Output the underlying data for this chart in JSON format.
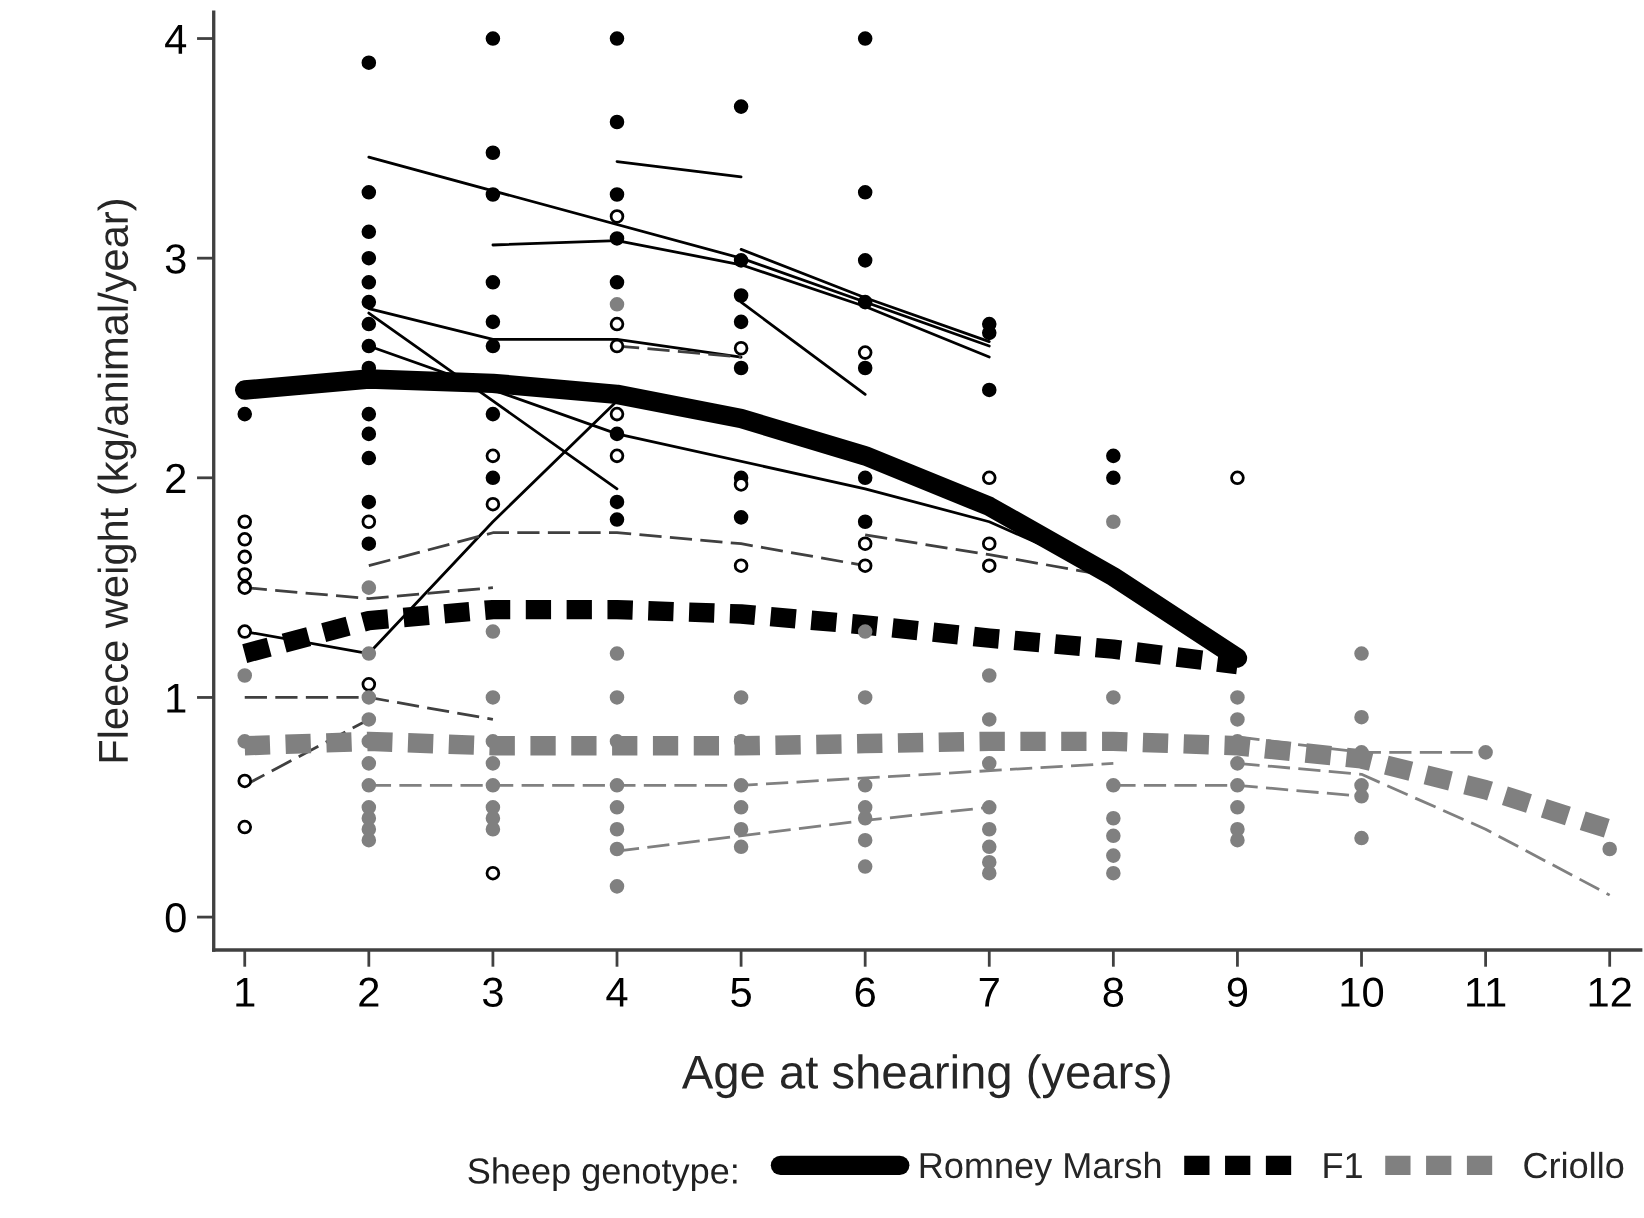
{
  "chart_data": {
    "type": "line",
    "xlabel": "Age at shearing (years)",
    "ylabel": "Fleece weight (kg/animal/year)",
    "legend_title": "Sheep genotype:",
    "xlim": [
      0.75,
      12.25
    ],
    "ylim": [
      -0.15,
      4.12
    ],
    "xticks": [
      1,
      2,
      3,
      4,
      5,
      6,
      7,
      8,
      9,
      10,
      11,
      12
    ],
    "yticks": [
      0,
      1,
      2,
      3,
      4
    ],
    "grid": false,
    "legend": "bottom",
    "series": [
      {
        "type": "scatter",
        "marker": "circle",
        "color": "#000000",
        "x": [
          1,
          2,
          2,
          2,
          2,
          2,
          2,
          2,
          2,
          2,
          2,
          2,
          2,
          2,
          2,
          3,
          3,
          3,
          3,
          3,
          3,
          3,
          3,
          4,
          4,
          4,
          4,
          4,
          4,
          4,
          4,
          5,
          5,
          5,
          5,
          5,
          5,
          5,
          6,
          6,
          6,
          6,
          6,
          6,
          6,
          7,
          7,
          7,
          8,
          8
        ],
        "values": [
          2.29,
          3.89,
          3.3,
          3.12,
          3.0,
          2.89,
          2.8,
          2.7,
          2.6,
          2.5,
          2.29,
          2.2,
          2.09,
          1.89,
          1.7,
          4.0,
          3.48,
          3.29,
          2.89,
          2.71,
          2.6,
          2.29,
          2.0,
          4.0,
          3.62,
          3.29,
          3.09,
          2.89,
          2.2,
          1.89,
          1.81,
          3.69,
          2.99,
          2.83,
          2.71,
          2.5,
          2.0,
          1.82,
          4.0,
          3.3,
          2.99,
          2.8,
          2.5,
          2.0,
          1.8,
          2.7,
          2.66,
          2.4,
          2.1,
          2.0
        ]
      },
      {
        "type": "scatter",
        "marker": "circle",
        "color": "#ffffff",
        "x": [
          1,
          1,
          1,
          1,
          1,
          1,
          1,
          1,
          2,
          2,
          3,
          3,
          3,
          4,
          4,
          4,
          4,
          4,
          5,
          5,
          5,
          6,
          6,
          6,
          7,
          7,
          7,
          9
        ],
        "values": [
          1.8,
          1.72,
          1.64,
          1.56,
          1.5,
          1.3,
          0.62,
          0.41,
          1.8,
          1.06,
          2.1,
          1.88,
          0.2,
          3.19,
          2.7,
          2.6,
          2.29,
          2.1,
          2.59,
          1.97,
          1.6,
          2.57,
          1.7,
          1.6,
          2.0,
          1.7,
          1.6,
          2.0
        ]
      },
      {
        "type": "scatter",
        "marker": "circle",
        "color": "#808080",
        "x": [
          1,
          1,
          2,
          2,
          2,
          2,
          2,
          2,
          2,
          2,
          2,
          2,
          2,
          3,
          3,
          3,
          3,
          3,
          3,
          3,
          3,
          4,
          4,
          4,
          4,
          4,
          4,
          4,
          4,
          4,
          5,
          5,
          5,
          5,
          5,
          5,
          6,
          6,
          6,
          6,
          6,
          6,
          6,
          7,
          7,
          7,
          7,
          7,
          7,
          7,
          7,
          8,
          8,
          8,
          8,
          8,
          8,
          8,
          9,
          9,
          9,
          9,
          9,
          9,
          9,
          9,
          10,
          10,
          10,
          10,
          10,
          10,
          11,
          12
        ],
        "values": [
          1.1,
          0.8,
          1.5,
          1.2,
          1.0,
          0.9,
          0.8,
          0.7,
          0.6,
          0.5,
          0.45,
          0.4,
          0.35,
          1.3,
          1.0,
          0.8,
          0.7,
          0.6,
          0.5,
          0.45,
          0.4,
          2.79,
          1.2,
          1.0,
          0.8,
          0.6,
          0.5,
          0.4,
          0.31,
          0.14,
          1.0,
          0.8,
          0.6,
          0.5,
          0.4,
          0.32,
          1.3,
          1.0,
          0.6,
          0.5,
          0.45,
          0.35,
          0.23,
          1.1,
          0.9,
          0.7,
          0.5,
          0.4,
          0.32,
          0.25,
          0.2,
          1.8,
          1.0,
          0.6,
          0.45,
          0.37,
          0.28,
          0.2,
          1.0,
          0.9,
          0.8,
          0.7,
          0.6,
          0.5,
          0.4,
          0.35,
          1.2,
          0.91,
          0.75,
          0.6,
          0.55,
          0.36,
          0.75,
          0.31
        ]
      },
      {
        "line_style": "solid",
        "color": "#000000",
        "x": [
          2,
          5,
          7
        ],
        "values": [
          3.46,
          3.0,
          2.6
        ]
      },
      {
        "line_style": "solid",
        "color": "#000000",
        "x": [
          3,
          4,
          5,
          6,
          7
        ],
        "values": [
          3.06,
          3.08,
          2.97,
          2.78,
          2.55
        ]
      },
      {
        "line_style": "solid",
        "color": "#000000",
        "x": [
          4,
          5
        ],
        "values": [
          3.44,
          3.37
        ]
      },
      {
        "line_style": "solid",
        "color": "#000000",
        "x": [
          5,
          6,
          7
        ],
        "values": [
          3.04,
          2.82,
          2.62
        ]
      },
      {
        "line_style": "solid",
        "color": "#000000",
        "x": [
          5,
          6
        ],
        "values": [
          2.8,
          2.38
        ]
      },
      {
        "line_style": "solid",
        "color": "#000000",
        "x": [
          2,
          3,
          4,
          5
        ],
        "values": [
          2.77,
          2.63,
          2.63,
          2.55
        ]
      },
      {
        "line_style": "solid",
        "color": "#000000",
        "x": [
          2,
          4,
          6,
          7,
          8
        ],
        "values": [
          2.6,
          2.2,
          1.95,
          1.8,
          1.55
        ]
      },
      {
        "line_style": "solid",
        "color": "#000000",
        "x": [
          2,
          3,
          4
        ],
        "values": [
          2.75,
          2.35,
          1.95
        ]
      },
      {
        "line_style": "solid",
        "color": "#000000",
        "x": [
          1,
          2,
          3,
          4
        ],
        "values": [
          1.3,
          1.2,
          1.8,
          2.35
        ]
      },
      {
        "line_style": "dashed",
        "color": "#404040",
        "x": [
          4,
          5
        ],
        "values": [
          2.6,
          2.55
        ]
      },
      {
        "line_style": "dashed",
        "color": "#404040",
        "x": [
          1,
          2,
          3
        ],
        "values": [
          1.5,
          1.45,
          1.5
        ]
      },
      {
        "line_style": "dashed",
        "color": "#404040",
        "x": [
          1,
          2,
          3
        ],
        "values": [
          1.0,
          1.0,
          0.9
        ]
      },
      {
        "line_style": "dashed",
        "color": "#404040",
        "x": [
          1,
          2
        ],
        "values": [
          0.6,
          0.9
        ]
      },
      {
        "line_style": "dashed",
        "color": "#404040",
        "x": [
          2,
          3,
          4,
          5,
          6
        ],
        "values": [
          1.6,
          1.75,
          1.75,
          1.7,
          1.6
        ]
      },
      {
        "line_style": "dashed",
        "color": "#404040",
        "x": [
          6,
          7,
          8
        ],
        "values": [
          1.74,
          1.65,
          1.55
        ]
      },
      {
        "line_style": "dashed",
        "color": "#808080",
        "x": [
          4,
          6,
          7
        ],
        "values": [
          0.3,
          0.44,
          0.5
        ]
      },
      {
        "line_style": "dashed",
        "color": "#808080",
        "x": [
          9,
          10,
          11
        ],
        "values": [
          0.82,
          0.75,
          0.75
        ]
      },
      {
        "line_style": "dashed",
        "color": "#808080",
        "x": [
          9,
          10,
          11,
          12
        ],
        "values": [
          0.7,
          0.65,
          0.4,
          0.1
        ]
      },
      {
        "line_style": "dashed",
        "color": "#808080",
        "x": [
          8,
          9,
          10
        ],
        "values": [
          0.6,
          0.6,
          0.55
        ]
      },
      {
        "line_style": "dashed",
        "color": "#808080",
        "x": [
          2,
          5,
          8
        ],
        "values": [
          0.6,
          0.6,
          0.7
        ]
      },
      {
        "name": "Romney Marsh",
        "line_style": "solid",
        "color": "#000000",
        "x": [
          1,
          2,
          3,
          4,
          5,
          6,
          7,
          8,
          9
        ],
        "values": [
          2.4,
          2.45,
          2.43,
          2.38,
          2.27,
          2.1,
          1.87,
          1.55,
          1.18
        ]
      },
      {
        "name": "F1",
        "line_style": "dashed",
        "color": "#000000",
        "x": [
          1,
          2,
          3,
          4,
          5,
          6,
          7,
          8,
          9
        ],
        "values": [
          1.2,
          1.35,
          1.4,
          1.4,
          1.38,
          1.33,
          1.27,
          1.22,
          1.15
        ]
      },
      {
        "name": "Criollo",
        "line_style": "dashed",
        "color": "#808080",
        "x": [
          1,
          2,
          3,
          4,
          5,
          6,
          7,
          8,
          9,
          10,
          11,
          12
        ],
        "values": [
          0.78,
          0.8,
          0.78,
          0.78,
          0.78,
          0.79,
          0.8,
          0.8,
          0.78,
          0.72,
          0.58,
          0.4
        ]
      }
    ]
  }
}
